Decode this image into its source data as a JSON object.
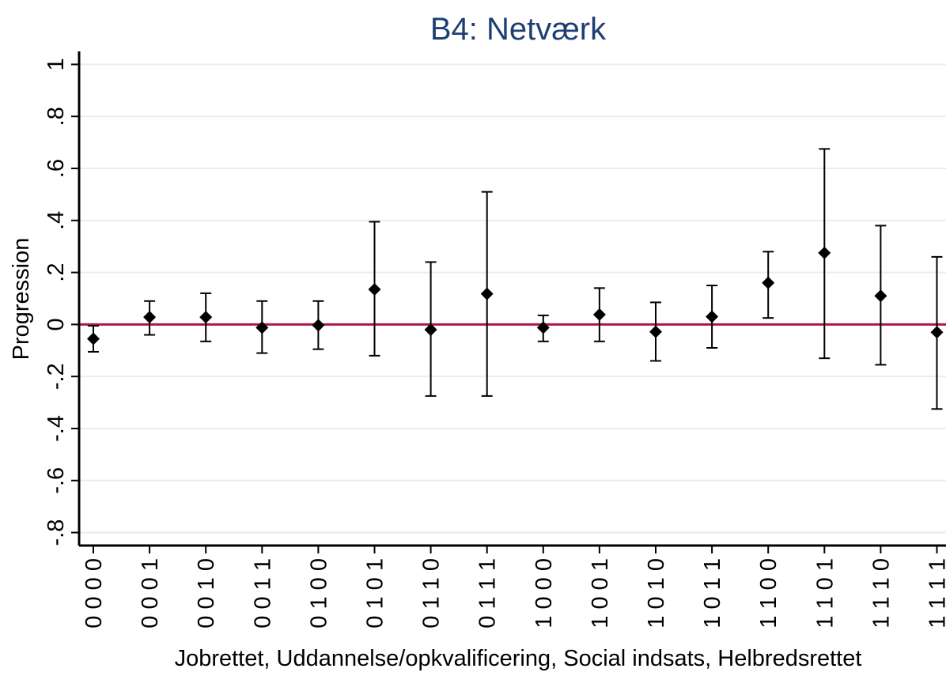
{
  "chart_data": {
    "type": "scatter",
    "title": "B4: Netværk",
    "xlabel": "Jobrettet, Uddannelse/opkvalificering, Social indsats, Helbredsrettet",
    "ylabel": "Progression",
    "ylim": [
      -0.85,
      1.05
    ],
    "yticks": [
      -0.8,
      -0.6,
      -0.4,
      -0.2,
      0,
      0.2,
      0.4,
      0.6,
      0.8,
      1
    ],
    "ytick_labels": [
      "-.8",
      "-.6",
      "-.4",
      "-.2",
      "0",
      ".2",
      ".4",
      ".6",
      ".8",
      "1"
    ],
    "grid": true,
    "reference_line": {
      "y": 0,
      "color": "#b01645"
    },
    "series": [
      {
        "marker": "diamond",
        "color": "#000000",
        "points": [
          {
            "x": "0 0 0 0",
            "y": -0.055,
            "lo": -0.105,
            "hi": -0.005
          },
          {
            "x": "0 0 0 1",
            "y": 0.028,
            "lo": -0.04,
            "hi": 0.09
          },
          {
            "x": "0 0 1 0",
            "y": 0.028,
            "lo": -0.065,
            "hi": 0.12
          },
          {
            "x": "0 0 1 1",
            "y": -0.012,
            "lo": -0.11,
            "hi": 0.09
          },
          {
            "x": "0 1 0 0",
            "y": -0.003,
            "lo": -0.095,
            "hi": 0.09
          },
          {
            "x": "0 1 0 1",
            "y": 0.135,
            "lo": -0.12,
            "hi": 0.395
          },
          {
            "x": "0 1 1 0",
            "y": -0.02,
            "lo": -0.275,
            "hi": 0.24
          },
          {
            "x": "0 1 1 1",
            "y": 0.118,
            "lo": -0.275,
            "hi": 0.51
          },
          {
            "x": "1 0 0 0",
            "y": -0.012,
            "lo": -0.065,
            "hi": 0.035
          },
          {
            "x": "1 0 0 1",
            "y": 0.038,
            "lo": -0.065,
            "hi": 0.14
          },
          {
            "x": "1 0 1 0",
            "y": -0.028,
            "lo": -0.14,
            "hi": 0.085
          },
          {
            "x": "1 0 1 1",
            "y": 0.03,
            "lo": -0.09,
            "hi": 0.15
          },
          {
            "x": "1 1 0 0",
            "y": 0.16,
            "lo": 0.025,
            "hi": 0.28
          },
          {
            "x": "1 1 0 1",
            "y": 0.275,
            "lo": -0.13,
            "hi": 0.675
          },
          {
            "x": "1 1 1 0",
            "y": 0.11,
            "lo": -0.155,
            "hi": 0.38
          },
          {
            "x": "1 1 1 1",
            "y": -0.03,
            "lo": -0.325,
            "hi": 0.26
          }
        ]
      }
    ]
  }
}
